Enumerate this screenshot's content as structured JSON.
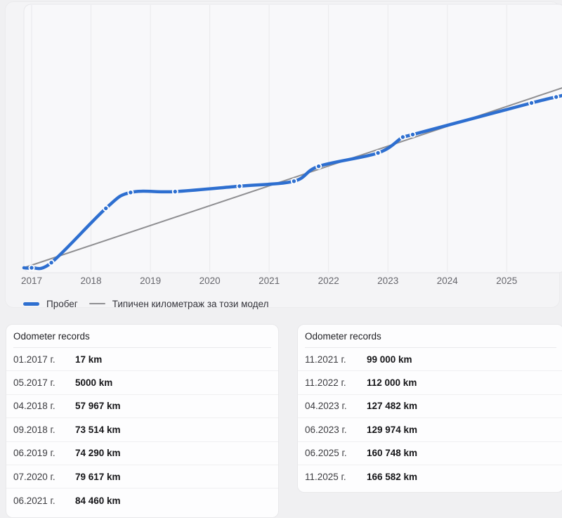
{
  "chart_data": {
    "type": "line",
    "title": "",
    "xlabel": "",
    "ylabel": "",
    "unit": "km",
    "xticks": [
      2017,
      2018,
      2019,
      2020,
      2021,
      2022,
      2023,
      2024,
      2025
    ],
    "xlim": [
      2016.87,
      2025.99
    ],
    "ylim": [
      0,
      257000
    ],
    "grid": "vertical",
    "legend_position": "bottom-left",
    "series": [
      {
        "name": "Пробег",
        "color": "#2e6fd0",
        "style": "thick-with-dots",
        "points": [
          {
            "date": "01.2017",
            "x": 2017.0,
            "km": 17
          },
          {
            "date": "05.2017",
            "x": 2017.333,
            "km": 5000
          },
          {
            "date": "04.2018",
            "x": 2018.25,
            "km": 57967
          },
          {
            "date": "09.2018",
            "x": 2018.667,
            "km": 73514
          },
          {
            "date": "06.2019",
            "x": 2019.417,
            "km": 74290
          },
          {
            "date": "07.2020",
            "x": 2020.5,
            "km": 79617
          },
          {
            "date": "06.2021",
            "x": 2021.417,
            "km": 84460
          },
          {
            "date": "11.2021",
            "x": 2021.833,
            "km": 99000
          },
          {
            "date": "11.2022",
            "x": 2022.833,
            "km": 112000
          },
          {
            "date": "04.2023",
            "x": 2023.25,
            "km": 127482
          },
          {
            "date": "06.2023",
            "x": 2023.417,
            "km": 129974
          },
          {
            "date": "06.2025",
            "x": 2025.417,
            "km": 160748
          },
          {
            "date": "11.2025",
            "x": 2025.833,
            "km": 166582
          }
        ]
      },
      {
        "name": "Типичен километраж за този модел",
        "color": "#8f8f92",
        "style": "thin-straight",
        "points": [
          {
            "x": 2016.87,
            "km": 0
          },
          {
            "x": 2025.99,
            "km": 176500
          }
        ]
      }
    ]
  },
  "tables": {
    "left": {
      "title": "Odometer records",
      "rows": [
        {
          "date": "01.2017 г.",
          "value": "17 km"
        },
        {
          "date": "05.2017 г.",
          "value": "5000 km"
        },
        {
          "date": "04.2018 г.",
          "value": "57 967 km"
        },
        {
          "date": "09.2018 г.",
          "value": "73 514 km"
        },
        {
          "date": "06.2019 г.",
          "value": "74 290 km"
        },
        {
          "date": "07.2020 г.",
          "value": "79 617 km"
        },
        {
          "date": "06.2021 г.",
          "value": "84 460 km"
        }
      ]
    },
    "right": {
      "title": "Odometer records",
      "rows": [
        {
          "date": "11.2021 г.",
          "value": "99 000 km"
        },
        {
          "date": "11.2022 г.",
          "value": "112 000 km"
        },
        {
          "date": "04.2023 г.",
          "value": "127 482 km"
        },
        {
          "date": "06.2023 г.",
          "value": "129 974 km"
        },
        {
          "date": "06.2025 г.",
          "value": "160 748 km"
        },
        {
          "date": "11.2025 г.",
          "value": "166 582 km"
        }
      ]
    }
  },
  "colors": {
    "page_bg": "#f0f0f2",
    "card_bg": "#f4f4f6",
    "plot_bg": "#f8f8fa",
    "gridline": "#e9e9ec",
    "mileage_line": "#2e6fd0",
    "typical_line": "#8f8f92",
    "tick_label": "#66666c"
  }
}
